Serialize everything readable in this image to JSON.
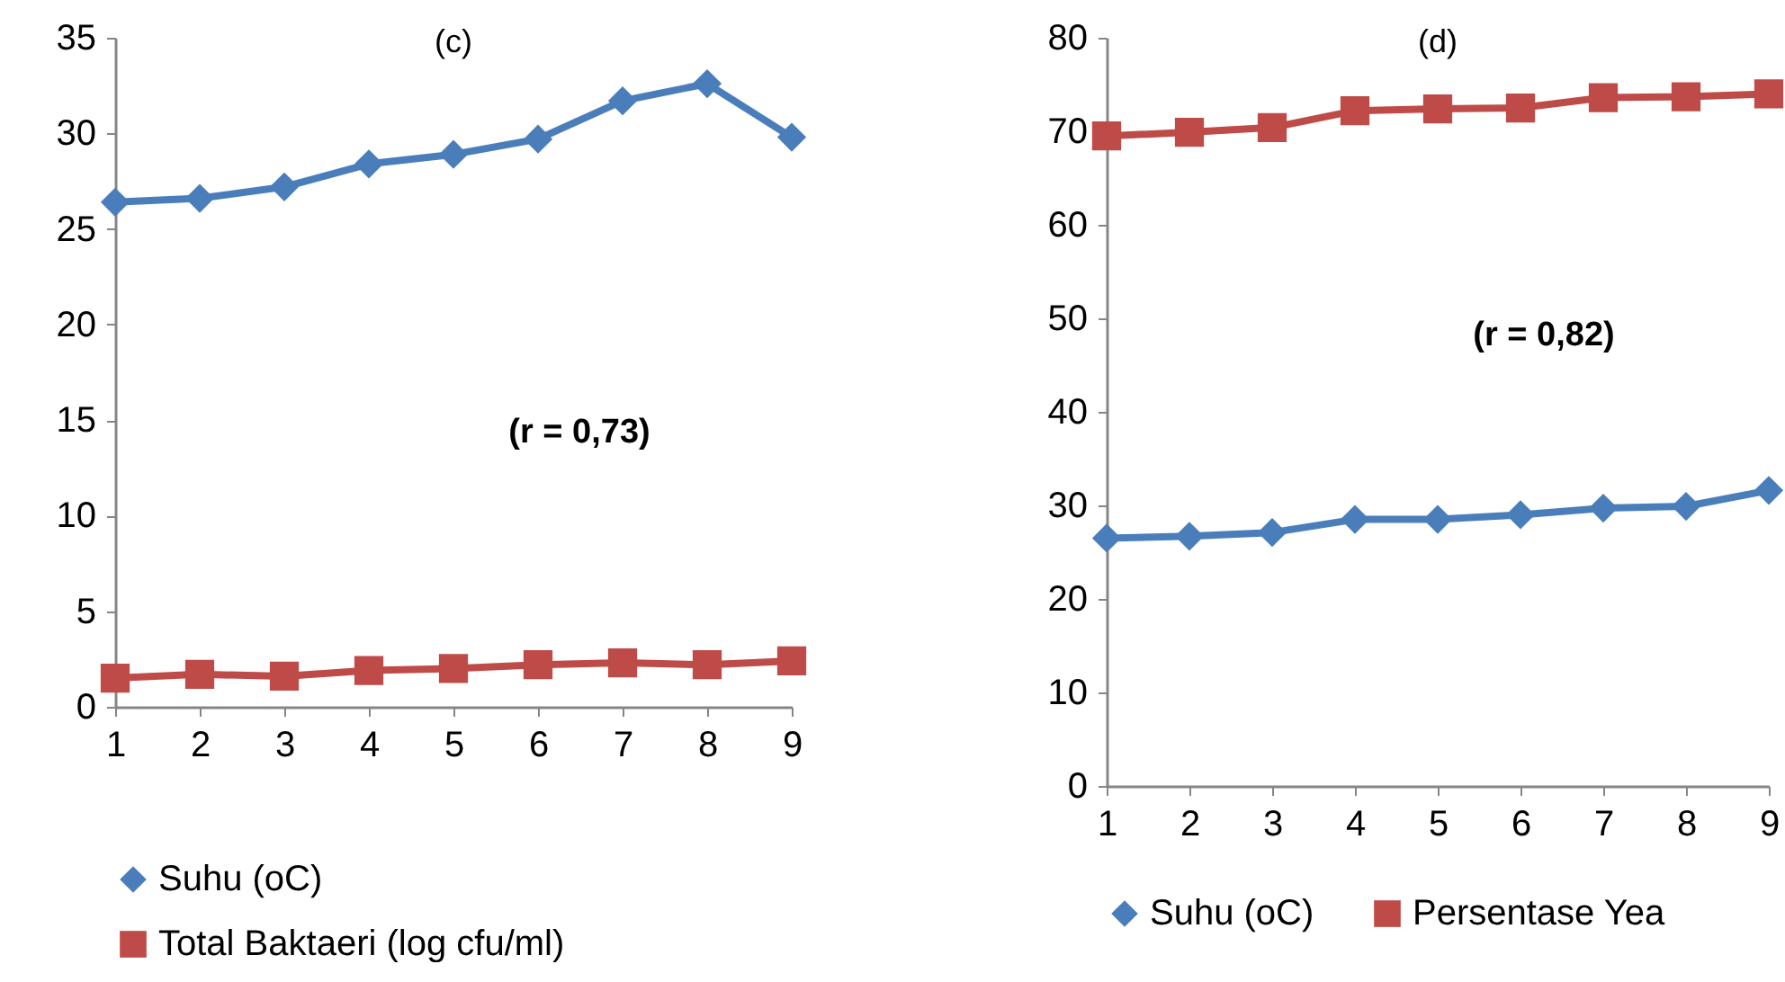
{
  "chart_data": [
    {
      "type": "line",
      "title": "(c)",
      "categories": [
        "1",
        "2",
        "3",
        "4",
        "5",
        "6",
        "7",
        "8",
        "9"
      ],
      "series": [
        {
          "name": "Suhu (oC)",
          "color": "#4a7ebb",
          "marker": "diamond",
          "values": [
            26.4,
            26.6,
            27.2,
            28.4,
            28.9,
            29.7,
            31.7,
            32.6,
            29.8
          ]
        },
        {
          "name": "Total Baktaeri (log cfu/ml)",
          "color": "#be4b48",
          "marker": "square",
          "values": [
            1.5,
            1.7,
            1.6,
            1.9,
            2.0,
            2.2,
            2.3,
            2.2,
            2.4
          ]
        }
      ],
      "ylim": [
        0,
        35
      ],
      "yticks": [
        0,
        5,
        10,
        15,
        20,
        25,
        30,
        35
      ],
      "annotations": [
        "(r = 0,73)"
      ],
      "legend": "bottom",
      "grid": false
    },
    {
      "type": "line",
      "title": "(d)",
      "categories": [
        "1",
        "2",
        "3",
        "4",
        "5",
        "6",
        "7",
        "8",
        "9"
      ],
      "series": [
        {
          "name": "Suhu (oC)",
          "color": "#4a7ebb",
          "marker": "diamond",
          "values": [
            26.5,
            26.7,
            27.1,
            28.5,
            28.5,
            29.0,
            29.7,
            29.9,
            31.6
          ]
        },
        {
          "name": "Persentase Yea",
          "color": "#be4b48",
          "marker": "square",
          "values": [
            69.5,
            69.9,
            70.4,
            72.2,
            72.4,
            72.5,
            73.6,
            73.7,
            74.0
          ]
        }
      ],
      "ylim": [
        0,
        80
      ],
      "yticks": [
        0,
        10,
        20,
        30,
        40,
        50,
        60,
        70,
        80
      ],
      "annotations": [
        "(r = 0,82)"
      ],
      "legend": "bottom",
      "grid": false
    }
  ]
}
